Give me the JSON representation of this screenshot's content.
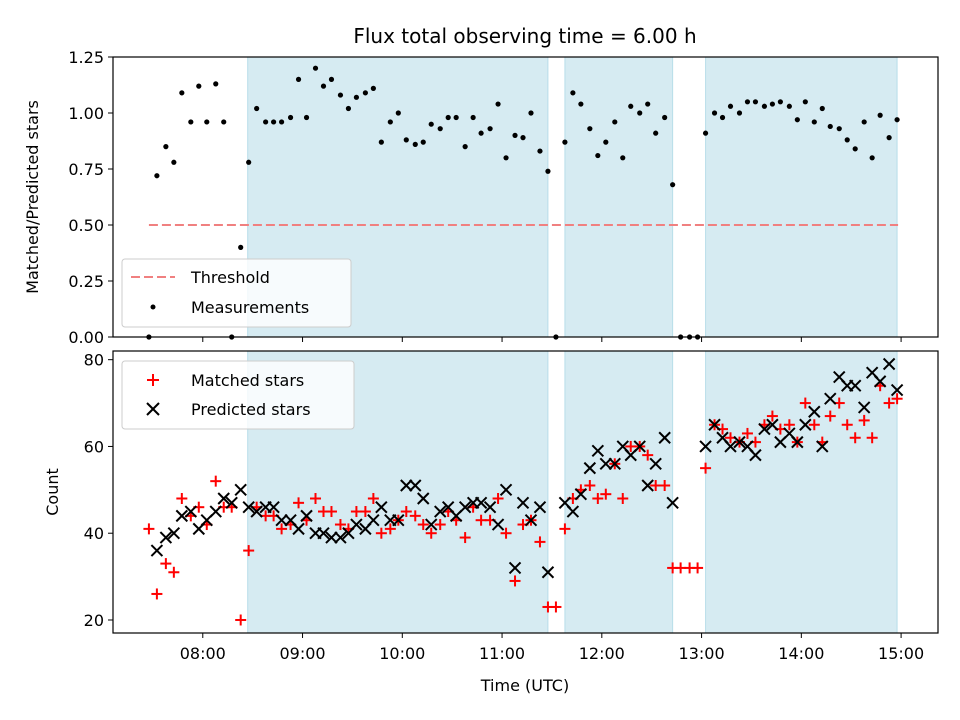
{
  "chart_data": {
    "title": "Flux total observing time = 6.00 h",
    "xlabel": "Time (UTC)",
    "x_unit": "hours",
    "xlim": [
      7.1,
      15.37
    ],
    "xticks": [
      {
        "value": 8,
        "label": "08:00"
      },
      {
        "value": 9,
        "label": "09:00"
      },
      {
        "value": 10,
        "label": "10:00"
      },
      {
        "value": 11,
        "label": "11:00"
      },
      {
        "value": 12,
        "label": "12:00"
      },
      {
        "value": 13,
        "label": "13:00"
      },
      {
        "value": 14,
        "label": "14:00"
      },
      {
        "value": 15,
        "label": "15:00"
      }
    ],
    "shaded_intervals": [
      [
        8.45,
        11.46
      ],
      [
        11.63,
        12.71
      ],
      [
        13.04,
        14.96
      ]
    ],
    "top_panel": {
      "type": "scatter",
      "ylabel": "Matched/Predicted stars",
      "ylim": [
        0,
        1.25
      ],
      "yticks": [
        {
          "value": 0.0,
          "label": "0.00"
        },
        {
          "value": 0.25,
          "label": "0.25"
        },
        {
          "value": 0.5,
          "label": "0.50"
        },
        {
          "value": 0.75,
          "label": "0.75"
        },
        {
          "value": 1.0,
          "label": "1.00"
        },
        {
          "value": 1.25,
          "label": "1.25"
        }
      ],
      "threshold": {
        "value": 0.5,
        "x_range": [
          7.46,
          14.97
        ],
        "color": "#f08080",
        "label": "Threshold"
      },
      "series_label": "Measurements",
      "points": [
        [
          7.46,
          0.0
        ],
        [
          7.54,
          0.72
        ],
        [
          7.63,
          0.85
        ],
        [
          7.71,
          0.78
        ],
        [
          7.79,
          1.09
        ],
        [
          7.88,
          0.96
        ],
        [
          7.96,
          1.12
        ],
        [
          8.04,
          0.96
        ],
        [
          8.13,
          1.13
        ],
        [
          8.21,
          0.96
        ],
        [
          8.29,
          0.0
        ],
        [
          8.38,
          0.4
        ],
        [
          8.46,
          0.78
        ],
        [
          8.54,
          1.02
        ],
        [
          8.63,
          0.96
        ],
        [
          8.71,
          0.96
        ],
        [
          8.79,
          0.96
        ],
        [
          8.88,
          0.98
        ],
        [
          8.96,
          1.15
        ],
        [
          9.04,
          0.98
        ],
        [
          9.13,
          1.2
        ],
        [
          9.21,
          1.12
        ],
        [
          9.29,
          1.15
        ],
        [
          9.38,
          1.08
        ],
        [
          9.46,
          1.02
        ],
        [
          9.54,
          1.07
        ],
        [
          9.63,
          1.09
        ],
        [
          9.71,
          1.11
        ],
        [
          9.79,
          0.87
        ],
        [
          9.88,
          0.96
        ],
        [
          9.96,
          1.0
        ],
        [
          10.04,
          0.88
        ],
        [
          10.13,
          0.86
        ],
        [
          10.21,
          0.87
        ],
        [
          10.29,
          0.95
        ],
        [
          10.38,
          0.93
        ],
        [
          10.46,
          0.98
        ],
        [
          10.54,
          0.98
        ],
        [
          10.63,
          0.85
        ],
        [
          10.71,
          0.98
        ],
        [
          10.79,
          0.91
        ],
        [
          10.88,
          0.93
        ],
        [
          10.96,
          1.04
        ],
        [
          11.04,
          0.8
        ],
        [
          11.13,
          0.9
        ],
        [
          11.21,
          0.89
        ],
        [
          11.29,
          1.0
        ],
        [
          11.38,
          0.83
        ],
        [
          11.46,
          0.74
        ],
        [
          11.54,
          0.0
        ],
        [
          11.63,
          0.87
        ],
        [
          11.71,
          1.09
        ],
        [
          11.79,
          1.04
        ],
        [
          11.88,
          0.93
        ],
        [
          11.96,
          0.81
        ],
        [
          12.04,
          0.87
        ],
        [
          12.13,
          0.96
        ],
        [
          12.21,
          0.8
        ],
        [
          12.29,
          1.03
        ],
        [
          12.38,
          1.0
        ],
        [
          12.46,
          1.04
        ],
        [
          12.54,
          0.91
        ],
        [
          12.63,
          0.98
        ],
        [
          12.71,
          0.68
        ],
        [
          12.79,
          0.0
        ],
        [
          12.88,
          0.0
        ],
        [
          12.96,
          0.0
        ],
        [
          13.04,
          0.91
        ],
        [
          13.13,
          1.0
        ],
        [
          13.21,
          0.98
        ],
        [
          13.29,
          1.03
        ],
        [
          13.38,
          1.0
        ],
        [
          13.46,
          1.05
        ],
        [
          13.54,
          1.05
        ],
        [
          13.63,
          1.03
        ],
        [
          13.71,
          1.04
        ],
        [
          13.79,
          1.05
        ],
        [
          13.88,
          1.03
        ],
        [
          13.96,
          0.97
        ],
        [
          14.04,
          1.05
        ],
        [
          14.13,
          0.96
        ],
        [
          14.21,
          1.02
        ],
        [
          14.29,
          0.94
        ],
        [
          14.38,
          0.93
        ],
        [
          14.46,
          0.88
        ],
        [
          14.54,
          0.84
        ],
        [
          14.63,
          0.96
        ],
        [
          14.71,
          0.8
        ],
        [
          14.79,
          0.99
        ],
        [
          14.88,
          0.89
        ],
        [
          14.96,
          0.97
        ]
      ]
    },
    "bottom_panel": {
      "type": "scatter",
      "ylabel": "Count",
      "ylim": [
        17,
        82
      ],
      "yticks": [
        {
          "value": 20,
          "label": "20"
        },
        {
          "value": 40,
          "label": "40"
        },
        {
          "value": 60,
          "label": "60"
        },
        {
          "value": 80,
          "label": "80"
        }
      ],
      "series": [
        {
          "name": "Matched stars",
          "marker": "plus",
          "color": "#ff0000",
          "points": [
            [
              7.46,
              41
            ],
            [
              7.54,
              26
            ],
            [
              7.63,
              33
            ],
            [
              7.71,
              31
            ],
            [
              7.79,
              48
            ],
            [
              7.88,
              44
            ],
            [
              7.96,
              46
            ],
            [
              8.04,
              42
            ],
            [
              8.13,
              52
            ],
            [
              8.21,
              46
            ],
            [
              8.29,
              46
            ],
            [
              8.38,
              20
            ],
            [
              8.46,
              36
            ],
            [
              8.54,
              46
            ],
            [
              8.63,
              44
            ],
            [
              8.71,
              44
            ],
            [
              8.79,
              41
            ],
            [
              8.88,
              42
            ],
            [
              8.96,
              47
            ],
            [
              9.04,
              43
            ],
            [
              9.13,
              48
            ],
            [
              9.21,
              45
            ],
            [
              9.29,
              45
            ],
            [
              9.38,
              42
            ],
            [
              9.46,
              41
            ],
            [
              9.54,
              45
            ],
            [
              9.63,
              45
            ],
            [
              9.71,
              48
            ],
            [
              9.79,
              40
            ],
            [
              9.88,
              41
            ],
            [
              9.96,
              43
            ],
            [
              10.04,
              45
            ],
            [
              10.13,
              44
            ],
            [
              10.21,
              42
            ],
            [
              10.29,
              40
            ],
            [
              10.38,
              42
            ],
            [
              10.46,
              45
            ],
            [
              10.54,
              43
            ],
            [
              10.63,
              39
            ],
            [
              10.71,
              46
            ],
            [
              10.79,
              43
            ],
            [
              10.88,
              43
            ],
            [
              10.96,
              48
            ],
            [
              11.04,
              40
            ],
            [
              11.13,
              29
            ],
            [
              11.21,
              42
            ],
            [
              11.29,
              43
            ],
            [
              11.38,
              38
            ],
            [
              11.46,
              23
            ],
            [
              11.54,
              23
            ],
            [
              11.63,
              41
            ],
            [
              11.71,
              48
            ],
            [
              11.79,
              50
            ],
            [
              11.88,
              51
            ],
            [
              11.96,
              48
            ],
            [
              12.04,
              49
            ],
            [
              12.13,
              56
            ],
            [
              12.21,
              48
            ],
            [
              12.29,
              60
            ],
            [
              12.38,
              60
            ],
            [
              12.46,
              58
            ],
            [
              12.54,
              51
            ],
            [
              12.63,
              51
            ],
            [
              12.71,
              32
            ],
            [
              12.79,
              32
            ],
            [
              12.88,
              32
            ],
            [
              12.96,
              32
            ],
            [
              13.04,
              55
            ],
            [
              13.13,
              65
            ],
            [
              13.21,
              64
            ],
            [
              13.29,
              62
            ],
            [
              13.38,
              61
            ],
            [
              13.46,
              63
            ],
            [
              13.54,
              61
            ],
            [
              13.63,
              65
            ],
            [
              13.71,
              67
            ],
            [
              13.79,
              64
            ],
            [
              13.88,
              65
            ],
            [
              13.96,
              61
            ],
            [
              14.04,
              70
            ],
            [
              14.13,
              65
            ],
            [
              14.21,
              61
            ],
            [
              14.29,
              67
            ],
            [
              14.38,
              70
            ],
            [
              14.46,
              65
            ],
            [
              14.54,
              62
            ],
            [
              14.63,
              66
            ],
            [
              14.71,
              62
            ],
            [
              14.79,
              74
            ],
            [
              14.88,
              70
            ],
            [
              14.96,
              71
            ]
          ]
        },
        {
          "name": "Predicted stars",
          "marker": "x",
          "color": "#000000",
          "points": [
            [
              7.54,
              36
            ],
            [
              7.63,
              39
            ],
            [
              7.71,
              40
            ],
            [
              7.79,
              44
            ],
            [
              7.88,
              45
            ],
            [
              7.96,
              41
            ],
            [
              8.04,
              43
            ],
            [
              8.13,
              45
            ],
            [
              8.21,
              48
            ],
            [
              8.29,
              47
            ],
            [
              8.38,
              50
            ],
            [
              8.46,
              46
            ],
            [
              8.54,
              45
            ],
            [
              8.63,
              46
            ],
            [
              8.71,
              46
            ],
            [
              8.79,
              43
            ],
            [
              8.88,
              43
            ],
            [
              8.96,
              41
            ],
            [
              9.04,
              44
            ],
            [
              9.13,
              40
            ],
            [
              9.21,
              40
            ],
            [
              9.29,
              39
            ],
            [
              9.38,
              39
            ],
            [
              9.46,
              40
            ],
            [
              9.54,
              42
            ],
            [
              9.63,
              41
            ],
            [
              9.71,
              43
            ],
            [
              9.79,
              46
            ],
            [
              9.88,
              43
            ],
            [
              9.96,
              43
            ],
            [
              10.04,
              51
            ],
            [
              10.13,
              51
            ],
            [
              10.21,
              48
            ],
            [
              10.29,
              42
            ],
            [
              10.38,
              45
            ],
            [
              10.46,
              46
            ],
            [
              10.54,
              44
            ],
            [
              10.63,
              46
            ],
            [
              10.71,
              47
            ],
            [
              10.79,
              47
            ],
            [
              10.88,
              46
            ],
            [
              10.96,
              42
            ],
            [
              11.04,
              50
            ],
            [
              11.13,
              32
            ],
            [
              11.21,
              47
            ],
            [
              11.29,
              43
            ],
            [
              11.38,
              46
            ],
            [
              11.46,
              31
            ],
            [
              11.63,
              47
            ],
            [
              11.71,
              45
            ],
            [
              11.79,
              49
            ],
            [
              11.88,
              55
            ],
            [
              11.96,
              59
            ],
            [
              12.04,
              56
            ],
            [
              12.13,
              56
            ],
            [
              12.21,
              60
            ],
            [
              12.29,
              58
            ],
            [
              12.38,
              60
            ],
            [
              12.46,
              51
            ],
            [
              12.54,
              56
            ],
            [
              12.63,
              62
            ],
            [
              12.71,
              47
            ],
            [
              13.04,
              60
            ],
            [
              13.13,
              65
            ],
            [
              13.21,
              62
            ],
            [
              13.29,
              60
            ],
            [
              13.38,
              61
            ],
            [
              13.46,
              60
            ],
            [
              13.54,
              58
            ],
            [
              13.63,
              64
            ],
            [
              13.71,
              65
            ],
            [
              13.79,
              61
            ],
            [
              13.88,
              63
            ],
            [
              13.96,
              61
            ],
            [
              14.04,
              65
            ],
            [
              14.13,
              68
            ],
            [
              14.21,
              60
            ],
            [
              14.29,
              71
            ],
            [
              14.38,
              76
            ],
            [
              14.46,
              74
            ],
            [
              14.54,
              74
            ],
            [
              14.63,
              69
            ],
            [
              14.71,
              77
            ],
            [
              14.79,
              75
            ],
            [
              14.88,
              79
            ],
            [
              14.96,
              73
            ]
          ]
        }
      ]
    }
  }
}
